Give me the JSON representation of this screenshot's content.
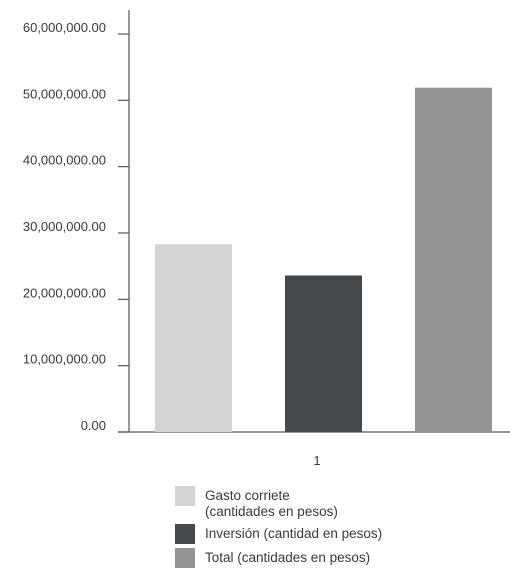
{
  "chart_data": {
    "type": "bar",
    "title": "",
    "xlabel": "",
    "ylabel": "",
    "categories": [
      "1"
    ],
    "ylim": [
      0,
      60000000
    ],
    "yticks": [
      {
        "value": 0,
        "label": "0.00"
      },
      {
        "value": 10000000,
        "label": "10,000,000.00"
      },
      {
        "value": 20000000,
        "label": "20,000,000.00"
      },
      {
        "value": 30000000,
        "label": "30,000,000.00"
      },
      {
        "value": 40000000,
        "label": "40,000,000.00"
      },
      {
        "value": 50000000,
        "label": "50,000,000.00"
      },
      {
        "value": 60000000,
        "label": "60,000,000.00"
      }
    ],
    "series": [
      {
        "name": "Gasto corriete\n(cantidades en pesos)",
        "values": [
          28300000
        ],
        "color": "#d4d5d2"
      },
      {
        "name": "Inversión (cantidad en pesos)",
        "values": [
          23600000
        ],
        "color": "#46494c"
      },
      {
        "name": "Total (cantidades en pesos)",
        "values": [
          51900000
        ],
        "color": "#939496"
      }
    ],
    "grid": false,
    "legend_position": "bottom"
  }
}
